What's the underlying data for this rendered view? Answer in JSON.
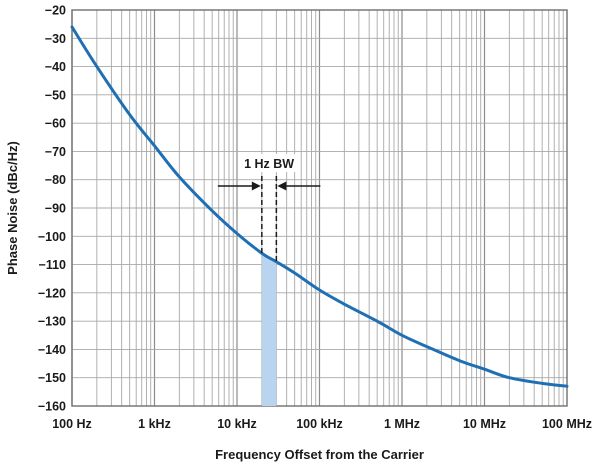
{
  "chart_data": {
    "type": "line",
    "title": "",
    "xlabel": "Frequency Offset from the Carrier",
    "ylabel": "Phase Noise (dBc/Hz)",
    "x_scale": "log",
    "xlim": [
      100,
      100000000
    ],
    "ylim": [
      -160,
      -20
    ],
    "x_ticks": [
      {
        "value": 100,
        "label": "100 Hz"
      },
      {
        "value": 1000,
        "label": "1 kHz"
      },
      {
        "value": 10000,
        "label": "10 kHz"
      },
      {
        "value": 100000,
        "label": "100 kHz"
      },
      {
        "value": 1000000,
        "label": "1 MHz"
      },
      {
        "value": 10000000,
        "label": "10 MHz"
      },
      {
        "value": 100000000,
        "label": "100 MHz"
      }
    ],
    "y_ticks": [
      -20,
      -30,
      -40,
      -50,
      -60,
      -70,
      -80,
      -90,
      -100,
      -110,
      -120,
      -130,
      -140,
      -150,
      -160
    ],
    "grid": true,
    "series": [
      {
        "color": "#1f6fb4",
        "x": [
          100,
          200,
          500,
          1000,
          2000,
          5000,
          10000,
          20000,
          30000,
          50000,
          100000,
          200000,
          500000,
          1000000,
          2000000,
          5000000,
          10000000,
          20000000,
          50000000,
          100000000
        ],
        "y": [
          -26,
          -40,
          -57,
          -68,
          -79,
          -91,
          -99,
          -106,
          -109,
          -113,
          -119,
          -124,
          -130,
          -135,
          -139,
          -144,
          -147,
          -150,
          -152,
          -153
        ]
      }
    ],
    "annotations": [
      {
        "label": "1 Hz BW",
        "band_x": [
          20000,
          30000
        ],
        "band_fill": "#b8d4ee"
      }
    ]
  }
}
